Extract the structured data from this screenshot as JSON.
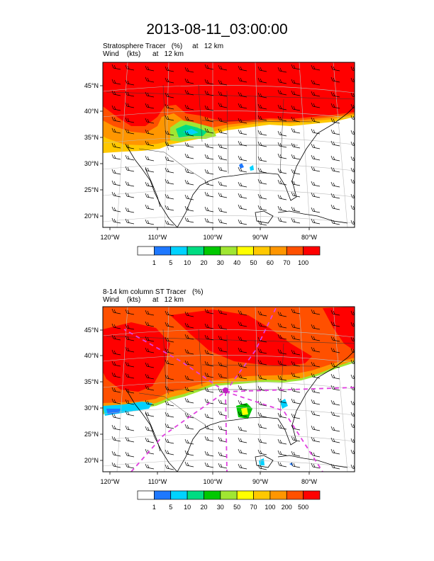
{
  "title": "2013-08-11_03:00:00",
  "panels": [
    {
      "label_line1": "Stratosphere Tracer   (%)     at   12 km",
      "label_line2": "Wind    (kts)      at   12 km",
      "lat_labels": [
        "45°N",
        "40°N",
        "35°N",
        "30°N",
        "25°N",
        "20°N"
      ],
      "lon_labels": [
        "120°W",
        "110°W",
        "100°W",
        "90°W",
        "80°W"
      ],
      "colorbar": {
        "colors": [
          "#ffffff",
          "#1e78ff",
          "#00d2ff",
          "#00dc82",
          "#00c800",
          "#a0e632",
          "#ffff00",
          "#ffc800",
          "#ff9600",
          "#ff5000",
          "#ff0000"
        ],
        "labels": [
          "1",
          "5",
          "10",
          "20",
          "30",
          "40",
          "50",
          "60",
          "70",
          "100"
        ]
      }
    },
    {
      "label_line1": "8-14 km column ST Tracer   (%)",
      "label_line2": "Wind    (kts)      at   12 km",
      "lat_labels": [
        "45°N",
        "40°N",
        "35°N",
        "30°N",
        "25°N",
        "20°N"
      ],
      "lon_labels": [
        "120°W",
        "110°W",
        "100°W",
        "90°W",
        "80°W"
      ],
      "colorbar": {
        "colors": [
          "#ffffff",
          "#1e78ff",
          "#00d2ff",
          "#00dc82",
          "#00c800",
          "#a0e632",
          "#ffff00",
          "#ffc800",
          "#ff9600",
          "#ff5000",
          "#ff0000"
        ],
        "labels": [
          "1",
          "5",
          "10",
          "20",
          "30",
          "50",
          "70",
          "100",
          "200",
          "500"
        ]
      }
    }
  ]
}
